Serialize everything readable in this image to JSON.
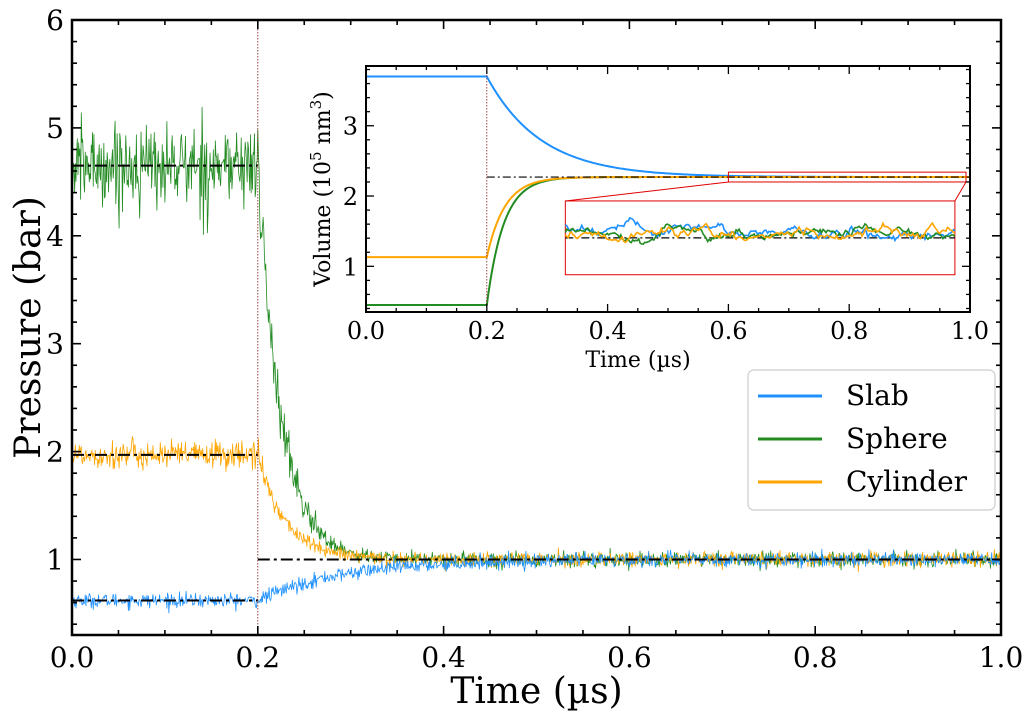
{
  "chart_data": [
    {
      "id": "main",
      "type": "line",
      "title": "",
      "xlabel": "Time (µs)",
      "ylabel": "Pressure (bar)",
      "xlim": [
        0.0,
        1.0
      ],
      "ylim": [
        0.3,
        6.0
      ],
      "xticks": [
        0.0,
        0.2,
        0.4,
        0.6,
        0.8,
        1.0
      ],
      "xtick_labels": [
        "0.0",
        "0.2",
        "0.4",
        "0.6",
        "0.8",
        "1.0"
      ],
      "yticks": [
        1,
        2,
        3,
        4,
        5,
        6
      ],
      "ytick_labels": [
        "1",
        "2",
        "3",
        "4",
        "5",
        "6"
      ],
      "switch_time": 0.2,
      "series": [
        {
          "name": "Slab",
          "color": "#1e90ff",
          "initial_value": 0.62,
          "final_value": 1.0,
          "time_constant": 0.09,
          "noise": 0.06
        },
        {
          "name": "Sphere",
          "color": "#228b22",
          "initial_value": 4.65,
          "final_value": 1.0,
          "time_constant": 0.025,
          "noise": 0.35
        },
        {
          "name": "Cylinder",
          "color": "#ffa500",
          "initial_value": 1.97,
          "final_value": 1.0,
          "time_constant": 0.03,
          "noise": 0.12
        }
      ],
      "reference_lines": [
        {
          "label": "Sphere target",
          "x_range": [
            0.0,
            0.2
          ],
          "value": 4.65
        },
        {
          "label": "Cylinder target",
          "x_range": [
            0.0,
            0.2
          ],
          "value": 1.97
        },
        {
          "label": "Slab target",
          "x_range": [
            0.0,
            0.2
          ],
          "value": 0.62
        },
        {
          "label": "Final target",
          "x_range": [
            0.2,
            1.0
          ],
          "value": 1.0
        }
      ],
      "legend": {
        "placement": "right",
        "entries": [
          "Slab",
          "Sphere",
          "Cylinder"
        ]
      }
    },
    {
      "id": "inset",
      "type": "line",
      "title": "",
      "xlabel": "Time (µs)",
      "ylabel_prefix": "Volume (10",
      "ylabel_sup1": "5",
      "ylabel_mid": " nm",
      "ylabel_sup2": "3",
      "ylabel_suffix": ")",
      "xlim": [
        0.0,
        1.0
      ],
      "ylim": [
        0.35,
        3.85
      ],
      "xticks": [
        0.0,
        0.2,
        0.4,
        0.6,
        0.8,
        1.0
      ],
      "xtick_labels": [
        "0.0",
        "0.2",
        "0.4",
        "0.6",
        "0.8",
        "1.0"
      ],
      "yticks": [
        1,
        2,
        3
      ],
      "ytick_labels": [
        "1",
        "2",
        "3"
      ],
      "switch_time": 0.2,
      "series": [
        {
          "name": "Slab",
          "color": "#1e90ff",
          "initial_value": 3.7,
          "final_value": 2.27,
          "time_constant": 0.09
        },
        {
          "name": "Sphere",
          "color": "#228b22",
          "initial_value": 0.45,
          "final_value": 2.27,
          "time_constant": 0.028
        },
        {
          "name": "Cylinder",
          "color": "#ffa500",
          "initial_value": 1.13,
          "final_value": 2.27,
          "time_constant": 0.03
        }
      ],
      "reference_line": {
        "x_range": [
          0.2,
          1.0
        ],
        "value": 2.27
      },
      "zoom_window": {
        "x_range": [
          0.6,
          1.0
        ],
        "y_range": [
          2.2,
          2.34
        ]
      }
    }
  ]
}
